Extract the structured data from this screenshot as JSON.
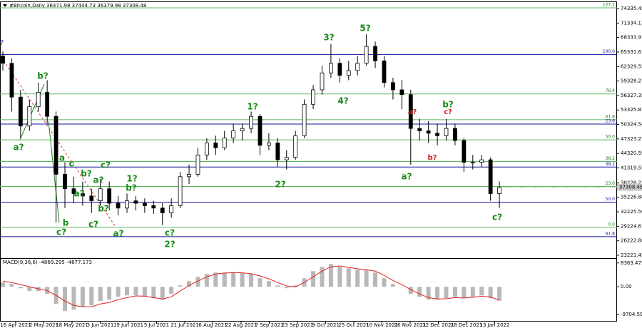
{
  "chart_data": {
    "type": "candlestick",
    "title": "#Bitcoin,Daily  36471.98 37444.73 36379.98 37308.48",
    "last_price": 37308.48,
    "ylim": [
      22627,
      75227
    ],
    "yticks": [
      74335.45,
      71334.13,
      68333.91,
      65331.61,
      62329.55,
      59328.27,
      56327.35,
      53325.81,
      50324.54,
      47323.27,
      44320.59,
      41319.55,
      38228.23,
      35226.88,
      32225.56,
      29224.61,
      26222.88,
      23221.45
    ],
    "categories": [
      "16 Apr 2021",
      "2 May 2021",
      "18 May 2021",
      "3 Jun 2021",
      "19 Jun 2021",
      "5 Jul 2021",
      "21 Jul 2021",
      "6 Aug 2021",
      "22 Aug 2021",
      "7 Sep 2021",
      "23 Sep 2021",
      "9 Oct 2021",
      "25 Oct 2021",
      "10 Nov 2021",
      "26 Nov 2021",
      "12 Dec 2021",
      "28 Dec 2021",
      "13 Jan 2022"
    ],
    "candles": [
      [
        64500,
        65500,
        61500,
        63000
      ],
      [
        63000,
        64000,
        53000,
        56000
      ],
      [
        56000,
        57500,
        47500,
        50000
      ],
      [
        50000,
        55500,
        49000,
        54000
      ],
      [
        54000,
        59000,
        53000,
        57000
      ],
      [
        57000,
        59500,
        50500,
        52000
      ],
      [
        52000,
        53000,
        30000,
        40000
      ],
      [
        40000,
        42500,
        33000,
        37000
      ],
      [
        37000,
        39500,
        34000,
        36000
      ],
      [
        36000,
        38500,
        33500,
        35500
      ],
      [
        35500,
        37000,
        32000,
        34500
      ],
      [
        34500,
        39000,
        33500,
        37000
      ],
      [
        37000,
        38500,
        32500,
        34000
      ],
      [
        34000,
        35500,
        31500,
        33000
      ],
      [
        33000,
        36000,
        32000,
        34500
      ],
      [
        34500,
        35500,
        32500,
        34000
      ],
      [
        34000,
        35000,
        32000,
        33500
      ],
      [
        33500,
        34500,
        31800,
        33000
      ],
      [
        33000,
        34000,
        29500,
        32000
      ],
      [
        32000,
        35000,
        31000,
        33500
      ],
      [
        33500,
        40500,
        33000,
        39500
      ],
      [
        39500,
        42000,
        38000,
        40000
      ],
      [
        40000,
        45500,
        39500,
        44000
      ],
      [
        44000,
        47500,
        43000,
        46500
      ],
      [
        46500,
        48000,
        44000,
        45500
      ],
      [
        45500,
        49000,
        45000,
        47500
      ],
      [
        47500,
        50500,
        46500,
        49000
      ],
      [
        49000,
        50500,
        47000,
        49500
      ],
      [
        49500,
        53000,
        48500,
        52000
      ],
      [
        52000,
        52500,
        44000,
        46000
      ],
      [
        46000,
        48500,
        45000,
        46500
      ],
      [
        46500,
        47500,
        41500,
        43000
      ],
      [
        43000,
        45000,
        41000,
        43500
      ],
      [
        43500,
        49000,
        43000,
        48000
      ],
      [
        48000,
        55500,
        47500,
        54500
      ],
      [
        54500,
        58500,
        53500,
        57500
      ],
      [
        57500,
        62500,
        56500,
        61000
      ],
      [
        61000,
        67000,
        60000,
        63000
      ],
      [
        63000,
        64000,
        59000,
        60500
      ],
      [
        60500,
        63500,
        59500,
        61500
      ],
      [
        61500,
        64500,
        60500,
        63000
      ],
      [
        63000,
        69000,
        62500,
        66500
      ],
      [
        66500,
        67500,
        62000,
        63500
      ],
      [
        63500,
        64500,
        58000,
        59000
      ],
      [
        59000,
        60000,
        55500,
        57500
      ],
      [
        57500,
        59500,
        53500,
        56500
      ],
      [
        56500,
        57500,
        42000,
        49500
      ],
      [
        49500,
        51500,
        47000,
        49000
      ],
      [
        49000,
        51000,
        46500,
        48500
      ],
      [
        48500,
        50500,
        46000,
        48000
      ],
      [
        48000,
        51500,
        47000,
        49500
      ],
      [
        49500,
        50500,
        46000,
        47000
      ],
      [
        47000,
        47500,
        40500,
        42500
      ],
      [
        42500,
        44000,
        41000,
        42500
      ],
      [
        42500,
        44000,
        41500,
        43000
      ],
      [
        43000,
        43500,
        34500,
        36000
      ],
      [
        36000,
        38500,
        33000,
        37300
      ]
    ],
    "levels": [
      {
        "value": 74484,
        "label": "127.2"
      },
      {
        "value": 56654,
        "label": "76.4"
      },
      {
        "value": 51303,
        "label": "61.8"
      },
      {
        "value": 47144,
        "label": "50.0"
      },
      {
        "value": 42644,
        "label": "38.2"
      },
      {
        "value": 37485,
        "label": "23.6"
      },
      {
        "value": 29016,
        "label": "0.0"
      }
    ],
    "levels_blue": [
      {
        "value": 64826,
        "label": "100.0"
      },
      {
        "value": 50413,
        "label": "23.6"
      },
      {
        "value": 41498,
        "label": "38.2"
      },
      {
        "value": 34217,
        "label": "50.0"
      },
      {
        "value": 27085,
        "label": "61.8"
      }
    ],
    "annotations": [
      "b?",
      "a?",
      "a",
      "c",
      "b?",
      "c?",
      "a?",
      "1?",
      "b?",
      "a?",
      "b?",
      "b",
      "c?",
      "c?",
      "a?",
      "c?",
      "2?",
      "2?",
      "1?",
      "3?",
      "5?",
      "4?",
      "a?",
      "c?",
      "b?",
      "b?",
      "a?",
      "c?"
    ],
    "macd": {
      "title": "MACD(9,36,6) -4869.295 -4677.173",
      "ylim": [
        -11946,
        9558
      ],
      "yticks": [
        8363.475,
        {
          "value": 0,
          "label": "0.00"
        },
        -9704.59
      ],
      "values": [
        1500,
        1000,
        -500,
        -1500,
        -1500,
        -2500,
        -6000,
        -8500,
        -8000,
        -7000,
        -6500,
        -5000,
        -4500,
        -3500,
        -3000,
        -3000,
        -3500,
        -4000,
        -4500,
        -2500,
        500,
        2000,
        3500,
        4500,
        5000,
        5000,
        5000,
        4800,
        4500,
        3000,
        2000,
        500,
        -500,
        500,
        3000,
        5500,
        7000,
        8000,
        7000,
        6500,
        6000,
        6000,
        5000,
        3000,
        1000,
        0,
        -2500,
        -3500,
        -4500,
        -4500,
        -4000,
        -3500,
        -4000,
        -3500,
        -3000,
        -4000,
        -4869.295
      ],
      "signal": [
        2000,
        1500,
        800,
        0,
        -700,
        -1300,
        -3000,
        -5000,
        -6500,
        -7000,
        -7000,
        -6000,
        -5500,
        -4500,
        -3800,
        -3200,
        -3300,
        -3800,
        -4300,
        -3500,
        -1500,
        500,
        2000,
        3500,
        4500,
        4800,
        5000,
        4900,
        4600,
        3800,
        2800,
        1500,
        300,
        0,
        1500,
        3500,
        5500,
        7000,
        7300,
        6800,
        6300,
        6000,
        5500,
        4000,
        2200,
        800,
        -1000,
        -2500,
        -3800,
        -4300,
        -4200,
        -3800,
        -3900,
        -3700,
        -3300,
        -3600,
        -4677.173
      ]
    }
  }
}
